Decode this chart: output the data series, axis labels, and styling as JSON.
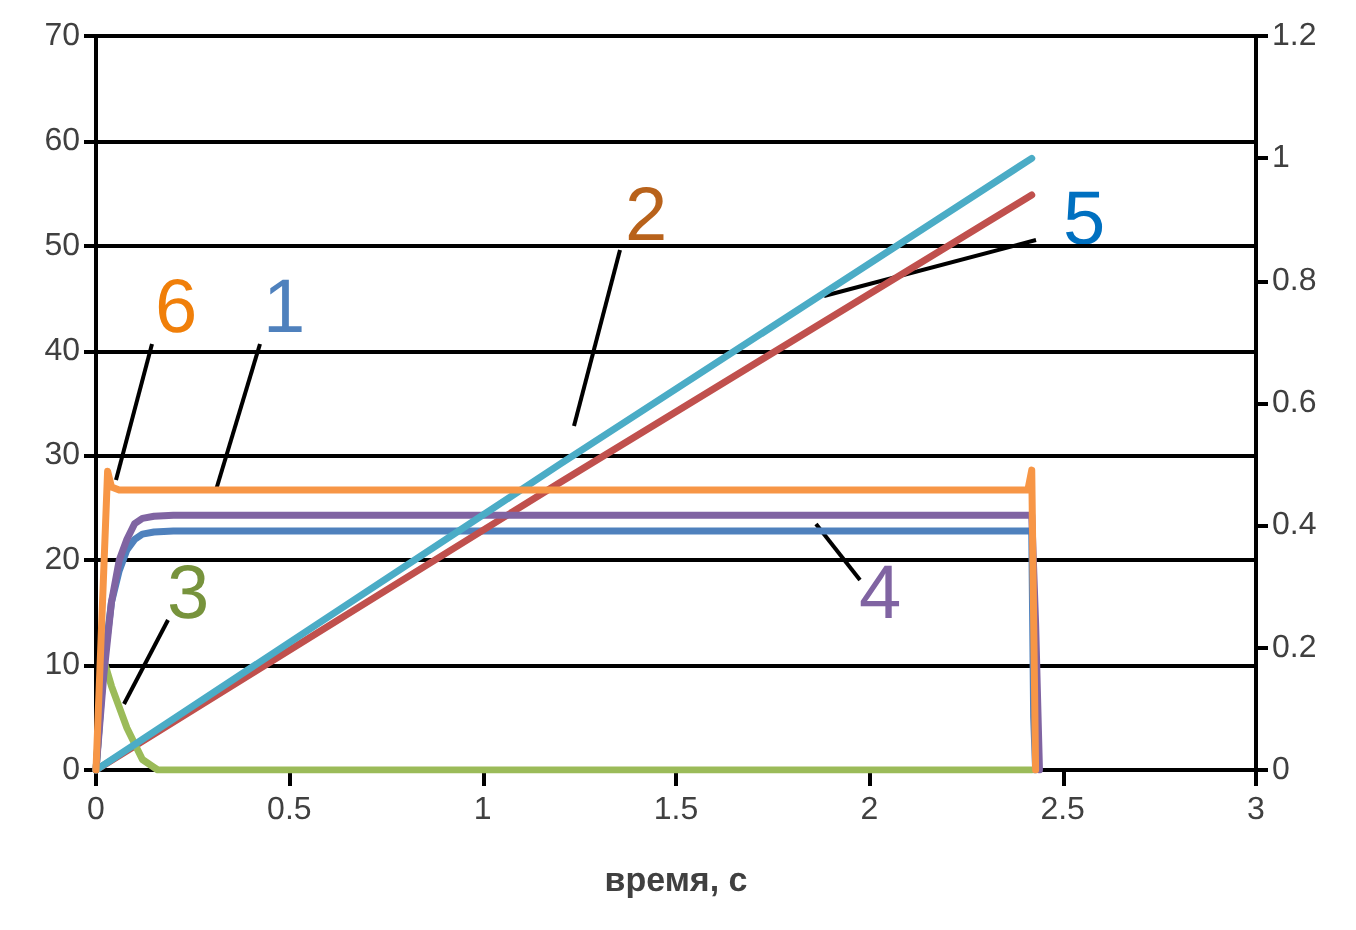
{
  "chart_data": {
    "type": "line",
    "xlabel": "время, с",
    "xlim": [
      0,
      3
    ],
    "xticks": [
      0,
      0.5,
      1,
      1.5,
      2,
      2.5,
      3
    ],
    "ylim": [
      0,
      70
    ],
    "yticks": [
      0,
      10,
      20,
      30,
      40,
      50,
      60,
      70
    ],
    "y2lim": [
      0,
      1.2
    ],
    "y2ticks": [
      0,
      0.2,
      0.4,
      0.6,
      0.8,
      1,
      1.2
    ],
    "grid": "y",
    "legend": false,
    "marker": "none",
    "line_style": "solid",
    "series": [
      {
        "name": "1",
        "color": "#4f81bd",
        "x": [
          0,
          0.02,
          0.04,
          0.06,
          0.08,
          0.1,
          0.12,
          0.15,
          0.2,
          2.42,
          2.425,
          2.43
        ],
        "values": [
          0,
          10,
          16,
          19,
          21,
          22,
          22.5,
          22.7,
          22.8,
          22.8,
          5,
          0
        ]
      },
      {
        "name": "2",
        "color": "#c0504d",
        "axis": "y2",
        "x": [
          0,
          1.2,
          2.42
        ],
        "values": [
          0,
          0.47,
          0.94
        ]
      },
      {
        "name": "3",
        "color": "#9bbb59",
        "x": [
          0,
          0.02,
          0.04,
          0.08,
          0.12,
          0.16,
          2.42
        ],
        "values": [
          0,
          10.5,
          8,
          4,
          1,
          0,
          0
        ]
      },
      {
        "name": "4",
        "color": "#8064a2",
        "x": [
          0,
          0.02,
          0.04,
          0.06,
          0.08,
          0.1,
          0.12,
          0.15,
          0.2,
          2.42,
          2.43,
          2.44
        ],
        "values": [
          0,
          9,
          16,
          20,
          22,
          23.5,
          24,
          24.2,
          24.3,
          24.3,
          14,
          0
        ]
      },
      {
        "name": "5",
        "color": "#4bacc6",
        "axis": "y2",
        "x": [
          0,
          1.2,
          2.42
        ],
        "values": [
          0,
          0.5,
          1
        ]
      },
      {
        "name": "6",
        "color": "#f79646",
        "x": [
          0,
          0.03,
          0.04,
          0.06,
          2.41,
          2.42,
          2.43
        ],
        "values": [
          0,
          28.5,
          27,
          26.7,
          26.7,
          28.6,
          0
        ]
      }
    ]
  }
}
